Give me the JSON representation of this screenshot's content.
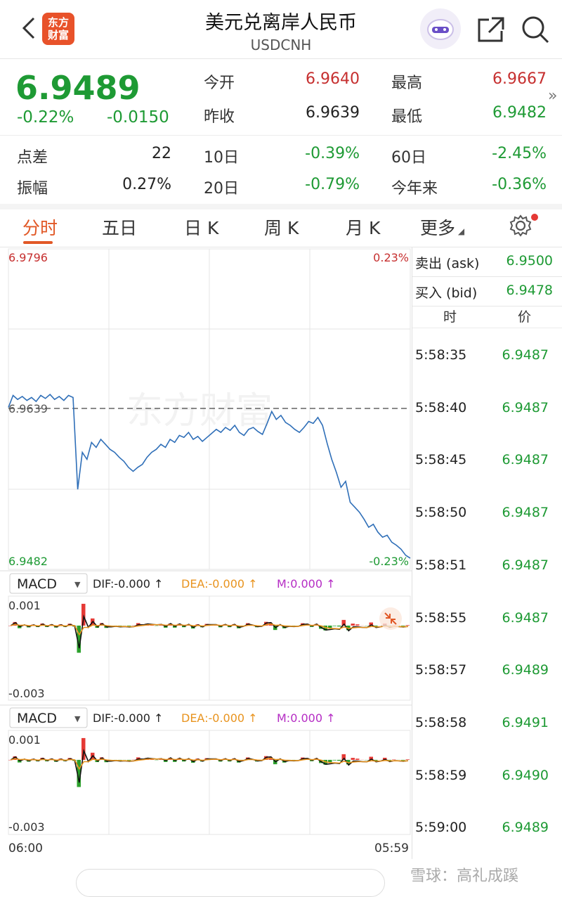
{
  "header": {
    "title": "美元兑离岸人民币",
    "subtitle": "USDCNH",
    "logo_text": [
      "东方",
      "财富"
    ]
  },
  "quote": {
    "price": "6.9489",
    "change_pct": "-0.22%",
    "change_abs": "-0.0150",
    "open_label": "今开",
    "open": "6.9640",
    "high_label": "最高",
    "high": "6.9667",
    "prev_label": "昨收",
    "prev": "6.9639",
    "low_label": "最低",
    "low": "6.9482",
    "spread_label": "点差",
    "spread": "22",
    "d10_label": "10日",
    "d10": "-0.39%",
    "d60_label": "60日",
    "d60": "-2.45%",
    "amp_label": "振幅",
    "amp": "0.27%",
    "d20_label": "20日",
    "d20": "-0.79%",
    "ytd_label": "今年来",
    "ytd": "-0.36%",
    "more": "»"
  },
  "tabs": [
    "分时",
    "五日",
    "日 K",
    "周 K",
    "月 K",
    "更多"
  ],
  "chart_data": [
    {
      "type": "line",
      "title": "",
      "y_top_label": "6.9796",
      "y_bottom_label": "6.9482",
      "pct_top_label": "0.23%",
      "pct_bottom_label": "-0.23%",
      "ref_label": "6.9639",
      "x_start_label": "06:00",
      "x_end_label": "05:59",
      "ylim": [
        6.9482,
        6.9796
      ],
      "reference": 6.9639,
      "series": [
        {
          "values": [
            6.964,
            6.9652,
            6.9648,
            6.9651,
            6.9647,
            6.965,
            6.9646,
            6.9652,
            6.9649,
            6.9653,
            6.9648,
            6.9651,
            6.9647,
            6.9652,
            6.965,
            6.9558,
            6.9595,
            6.9588,
            6.9605,
            6.96,
            6.9608,
            6.9603,
            6.9598,
            6.9595,
            6.959,
            6.9586,
            6.958,
            6.9576,
            6.958,
            6.9583,
            6.959,
            6.9595,
            6.9598,
            6.9603,
            6.96,
            6.9608,
            6.9605,
            6.9612,
            6.961,
            6.9615,
            6.9608,
            6.9611,
            6.9606,
            6.961,
            6.9614,
            6.9618,
            6.9615,
            6.962,
            6.9617,
            6.9622,
            6.9615,
            6.9612,
            6.9618,
            6.962,
            6.9616,
            6.9613,
            6.9624,
            6.9636,
            6.9628,
            6.9632,
            6.9625,
            6.9622,
            6.9618,
            6.9615,
            6.962,
            6.9626,
            6.9624,
            6.963,
            6.9622,
            6.9604,
            6.9588,
            6.9575,
            6.956,
            6.9566,
            6.9545,
            6.954,
            6.9535,
            6.9528,
            6.952,
            6.9523,
            6.9515,
            6.951,
            6.9512,
            6.9505,
            6.9502,
            6.9498,
            6.9492,
            6.9489
          ]
        }
      ]
    },
    {
      "type": "bar",
      "title": "MACD",
      "dif_label": "DIF:-0.000 ↑",
      "dea_label": "DEA:-0.000 ↑",
      "m_label": "M:0.000 ↑",
      "y_top_label": "0.001",
      "y_bottom_label": "-0.003",
      "ylim": [
        -0.0035,
        0.0013
      ]
    },
    {
      "type": "bar",
      "title": "MACD",
      "dif_label": "DIF:-0.000 ↑",
      "dea_label": "DEA:-0.000 ↑",
      "m_label": "M:0.000 ↑",
      "y_top_label": "0.001",
      "y_bottom_label": "-0.003",
      "ylim": [
        -0.0035,
        0.0013
      ]
    }
  ],
  "side": {
    "ask_label": "卖出 (ask)",
    "ask": "6.9500",
    "bid_label": "买入 (bid)",
    "bid": "6.9478",
    "col_time": "时",
    "col_price": "价",
    "ticks": [
      {
        "t": "5:58:35",
        "p": "6.9487"
      },
      {
        "t": "5:58:40",
        "p": "6.9487"
      },
      {
        "t": "5:58:45",
        "p": "6.9487"
      },
      {
        "t": "5:58:50",
        "p": "6.9487"
      },
      {
        "t": "5:58:51",
        "p": "6.9487"
      },
      {
        "t": "5:58:55",
        "p": "6.9487"
      },
      {
        "t": "5:58:57",
        "p": "6.9489"
      },
      {
        "t": "5:58:58",
        "p": "6.9491"
      },
      {
        "t": "5:58:59",
        "p": "6.9490"
      },
      {
        "t": "5:59:00",
        "p": "6.9489"
      }
    ]
  },
  "watermark": "雪球：高礼成蹊",
  "chart_watermark": "东方财富"
}
